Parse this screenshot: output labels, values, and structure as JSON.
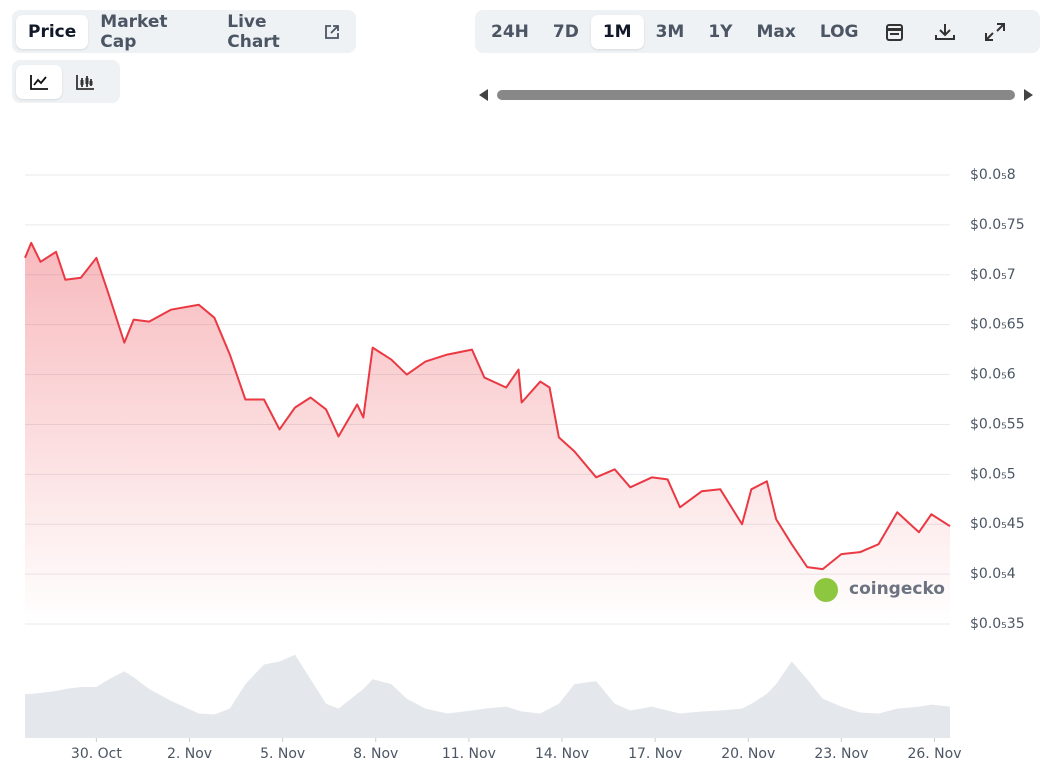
{
  "controls": {
    "tabs": [
      "Price",
      "Market Cap",
      "Live Chart"
    ],
    "selected_tab": "Price",
    "ranges": [
      "24H",
      "7D",
      "1M",
      "3M",
      "1Y",
      "Max",
      "LOG"
    ],
    "selected_range": "1M"
  },
  "chart_data": {
    "type": "line",
    "watermark": "coingecko",
    "color": "#ea3943",
    "grid": true,
    "x": [
      27.7,
      27.9,
      28.2,
      28.7,
      29.0,
      29.5,
      30.0,
      30.4,
      30.9,
      31.2,
      31.7,
      32.4,
      33.3,
      33.8,
      34.3,
      34.8,
      35.4,
      35.9,
      36.4,
      36.9,
      37.4,
      37.8,
      38.4,
      38.6,
      38.9,
      39.5,
      40.0,
      40.6,
      41.3,
      42.1,
      42.5,
      43.2,
      43.6,
      43.7,
      44.3,
      44.6,
      44.9,
      45.4,
      46.1,
      46.7,
      47.2,
      47.9,
      48.4,
      48.8,
      49.5,
      50.1,
      50.8,
      51.1,
      51.6,
      51.9,
      52.4,
      52.9,
      53.4,
      54.0,
      54.6,
      55.2,
      55.8,
      56.5,
      56.9,
      57.5
    ],
    "values": [
      7.17e-06,
      7.32e-06,
      7.13e-06,
      7.23e-06,
      6.95e-06,
      6.97e-06,
      7.17e-06,
      6.8e-06,
      6.32e-06,
      6.55e-06,
      6.53e-06,
      6.65e-06,
      6.7e-06,
      6.57e-06,
      6.2e-06,
      5.75e-06,
      5.75e-06,
      5.45e-06,
      5.67e-06,
      5.77e-06,
      5.65e-06,
      5.38e-06,
      5.7e-06,
      5.57e-06,
      6.27e-06,
      6.15e-06,
      6e-06,
      6.13e-06,
      6.2e-06,
      6.25e-06,
      5.97e-06,
      5.87e-06,
      6.05e-06,
      5.72e-06,
      5.93e-06,
      5.87e-06,
      5.37e-06,
      5.23e-06,
      4.97e-06,
      5.05e-06,
      4.87e-06,
      4.97e-06,
      4.95e-06,
      4.67e-06,
      4.83e-06,
      4.85e-06,
      4.5e-06,
      4.85e-06,
      4.93e-06,
      4.55e-06,
      4.3e-06,
      4.07e-06,
      4.05e-06,
      4.2e-06,
      4.22e-06,
      4.3e-06,
      4.62e-06,
      4.42e-06,
      4.6e-06,
      4.48e-06
    ],
    "volume": [
      45,
      45,
      46,
      48,
      50,
      52,
      52,
      60,
      68,
      62,
      50,
      38,
      25,
      24,
      30,
      55,
      75,
      78,
      85,
      60,
      35,
      30,
      45,
      50,
      60,
      55,
      40,
      30,
      25,
      28,
      30,
      32,
      28,
      27,
      25,
      30,
      35,
      55,
      58,
      35,
      28,
      32,
      28,
      25,
      27,
      28,
      30,
      35,
      45,
      55,
      78,
      60,
      40,
      32,
      26,
      25,
      30,
      32,
      34,
      32
    ],
    "volume_color": "#e4e7eb",
    "volume_lim": [
      0,
      100
    ],
    "xlim": [
      27.7,
      57.5
    ],
    "xticks": [
      {
        "value": 30,
        "label": "30. Oct"
      },
      {
        "value": 33,
        "label": "2. Nov"
      },
      {
        "value": 36,
        "label": "5. Nov"
      },
      {
        "value": 39,
        "label": "8. Nov"
      },
      {
        "value": 42,
        "label": "11. Nov"
      },
      {
        "value": 45,
        "label": "14. Nov"
      },
      {
        "value": 48,
        "label": "17. Nov"
      },
      {
        "value": 51,
        "label": "20. Nov"
      },
      {
        "value": 54,
        "label": "23. Nov"
      },
      {
        "value": 57,
        "label": "26. Nov"
      }
    ],
    "ylim": [
      3.5e-06,
      8e-06
    ],
    "yticks": [
      {
        "value": 8e-06,
        "label": "$0.0₅8"
      },
      {
        "value": 7.5e-06,
        "label": "$0.0₅75"
      },
      {
        "value": 7e-06,
        "label": "$0.0₅7"
      },
      {
        "value": 6.5e-06,
        "label": "$0.0₅65"
      },
      {
        "value": 6e-06,
        "label": "$0.0₅6"
      },
      {
        "value": 5.5e-06,
        "label": "$0.0₅55"
      },
      {
        "value": 5e-06,
        "label": "$0.0₅5"
      },
      {
        "value": 4.5e-06,
        "label": "$0.0₅45"
      },
      {
        "value": 4e-06,
        "label": "$0.0₅4"
      },
      {
        "value": 3.5e-06,
        "label": "$0.0₅35"
      }
    ]
  }
}
